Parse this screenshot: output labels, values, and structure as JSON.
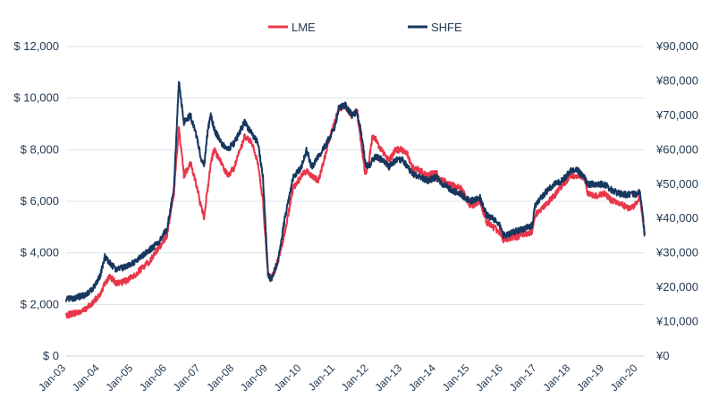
{
  "chart_data": {
    "type": "line",
    "title": "",
    "xlabel": "",
    "ylabel": "",
    "legend_position": "top-center",
    "grid": true,
    "colors": {
      "LME": "#e8364a",
      "SHFE": "#17375e",
      "text": "#243a52",
      "grid": "#d9e3ef"
    },
    "x_tick_labels": [
      "Jan-03",
      "Jan-04",
      "Jan-05",
      "Jan-06",
      "Jan-07",
      "Jan-08",
      "Jan-09",
      "Jan-10",
      "Jan-11",
      "Jan-12",
      "Jan-13",
      "Jan-14",
      "Jan-15",
      "Jan-16",
      "Jan-17",
      "Jan-18",
      "Jan-19",
      "Jan-20"
    ],
    "y_left": {
      "min": 0,
      "max": 12000,
      "ticks": [
        0,
        2000,
        4000,
        6000,
        8000,
        10000,
        12000
      ],
      "labels": [
        "$ 0",
        "$ 2,000",
        "$ 4,000",
        "$ 6,000",
        "$ 8,000",
        "$ 10,000",
        "$ 12,000"
      ]
    },
    "y_right": {
      "min": 0,
      "max": 90000,
      "ticks": [
        0,
        10000,
        20000,
        30000,
        40000,
        50000,
        60000,
        70000,
        80000,
        90000
      ],
      "labels": [
        "¥0",
        "¥10,000",
        "¥20,000",
        "¥30,000",
        "¥40,000",
        "¥50,000",
        "¥60,000",
        "¥70,000",
        "¥80,000",
        "¥90,000"
      ]
    },
    "series": [
      {
        "name": "LME",
        "axis": "left",
        "x": [
          2003.0,
          2003.25,
          2003.5,
          2003.75,
          2004.0,
          2004.15,
          2004.3,
          2004.5,
          2004.75,
          2005.0,
          2005.25,
          2005.5,
          2005.75,
          2006.0,
          2006.2,
          2006.35,
          2006.5,
          2006.7,
          2006.9,
          2007.0,
          2007.1,
          2007.2,
          2007.3,
          2007.4,
          2007.6,
          2007.8,
          2008.0,
          2008.3,
          2008.5,
          2008.7,
          2008.85,
          2009.0,
          2009.1,
          2009.3,
          2009.5,
          2009.75,
          2010.0,
          2010.15,
          2010.3,
          2010.5,
          2010.75,
          2011.0,
          2011.1,
          2011.3,
          2011.5,
          2011.65,
          2011.75,
          2011.9,
          2012.0,
          2012.1,
          2012.2,
          2012.4,
          2012.6,
          2012.8,
          2013.0,
          2013.15,
          2013.3,
          2013.5,
          2013.75,
          2014.0,
          2014.2,
          2014.5,
          2014.75,
          2015.0,
          2015.3,
          2015.5,
          2015.7,
          2015.9,
          2016.0,
          2016.3,
          2016.6,
          2016.85,
          2016.95,
          2017.2,
          2017.5,
          2017.75,
          2018.0,
          2018.2,
          2018.4,
          2018.5,
          2018.75,
          2019.0,
          2019.25,
          2019.5,
          2019.75,
          2019.95,
          2020.05,
          2020.15,
          2020.2
        ],
        "y": [
          1600,
          1650,
          1750,
          2000,
          2400,
          2800,
          3100,
          2800,
          2900,
          3100,
          3400,
          3700,
          4200,
          4700,
          6300,
          8800,
          7000,
          7500,
          6500,
          5800,
          5400,
          6400,
          7500,
          8000,
          7500,
          7000,
          7300,
          8500,
          8300,
          7500,
          6000,
          3200,
          3000,
          3700,
          4800,
          6500,
          7000,
          7200,
          7000,
          6800,
          8000,
          9200,
          9600,
          9700,
          9300,
          9500,
          8400,
          7000,
          7500,
          8500,
          8400,
          7900,
          7600,
          8000,
          8000,
          7800,
          7300,
          7200,
          7000,
          7100,
          6800,
          6600,
          6500,
          5800,
          6000,
          5200,
          5000,
          4800,
          4500,
          4600,
          4700,
          4800,
          5500,
          5800,
          6200,
          6600,
          7000,
          7000,
          6900,
          6300,
          6200,
          6300,
          6000,
          5900,
          5700,
          5900,
          6200,
          5200,
          4700
        ]
      },
      {
        "name": "SHFE",
        "axis": "right",
        "x": [
          2003.0,
          2003.25,
          2003.5,
          2003.75,
          2004.0,
          2004.15,
          2004.3,
          2004.5,
          2004.75,
          2005.0,
          2005.25,
          2005.5,
          2005.75,
          2006.0,
          2006.2,
          2006.35,
          2006.5,
          2006.7,
          2006.9,
          2007.0,
          2007.1,
          2007.2,
          2007.3,
          2007.4,
          2007.6,
          2007.8,
          2008.0,
          2008.3,
          2008.5,
          2008.7,
          2008.85,
          2009.0,
          2009.1,
          2009.3,
          2009.5,
          2009.75,
          2010.0,
          2010.15,
          2010.3,
          2010.5,
          2010.75,
          2011.0,
          2011.1,
          2011.3,
          2011.5,
          2011.65,
          2011.75,
          2011.9,
          2012.0,
          2012.1,
          2012.2,
          2012.4,
          2012.6,
          2012.8,
          2013.0,
          2013.15,
          2013.3,
          2013.5,
          2013.75,
          2014.0,
          2014.2,
          2014.5,
          2014.75,
          2015.0,
          2015.3,
          2015.5,
          2015.7,
          2015.9,
          2016.0,
          2016.3,
          2016.6,
          2016.85,
          2016.95,
          2017.2,
          2017.5,
          2017.75,
          2018.0,
          2018.2,
          2018.4,
          2018.5,
          2018.75,
          2019.0,
          2019.25,
          2019.5,
          2019.75,
          2019.95,
          2020.05,
          2020.15,
          2020.2
        ],
        "y": [
          16500,
          17000,
          17500,
          19000,
          23000,
          29000,
          27000,
          25000,
          26000,
          27000,
          29000,
          31000,
          33000,
          37000,
          48000,
          80000,
          68000,
          70000,
          63000,
          58000,
          55000,
          65000,
          70000,
          66000,
          62000,
          60000,
          62000,
          68000,
          65000,
          62000,
          52000,
          24000,
          22000,
          28000,
          40000,
          52000,
          55000,
          60000,
          55000,
          58000,
          62000,
          67000,
          72000,
          73000,
          70000,
          71000,
          66000,
          56000,
          55000,
          57000,
          58000,
          57000,
          55000,
          57000,
          57000,
          55000,
          53000,
          52000,
          51000,
          52000,
          50000,
          48000,
          47000,
          45000,
          46000,
          41000,
          40000,
          38000,
          35000,
          36000,
          37000,
          38000,
          44000,
          47000,
          50000,
          51000,
          54000,
          54000,
          52000,
          50000,
          50000,
          50000,
          48000,
          47000,
          47000,
          47000,
          48000,
          40000,
          35000
        ]
      }
    ]
  }
}
